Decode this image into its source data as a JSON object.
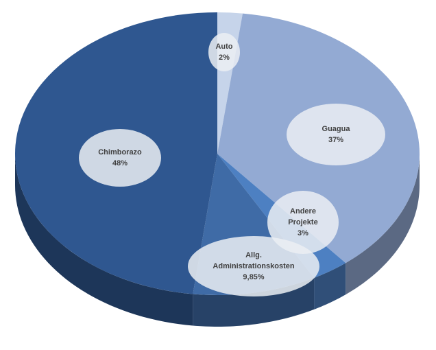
{
  "chart_data": {
    "type": "pie",
    "categories": [
      "Auto",
      "Guagua",
      "Andere Projekte",
      "Allg. Administrationskosten",
      "Chimborazo"
    ],
    "values": [
      2,
      37,
      3,
      9.85,
      48
    ],
    "value_labels": [
      "2%",
      "37%",
      "3%",
      "9,85%",
      "48%"
    ],
    "colors": [
      "#c6d4ea",
      "#93aad3",
      "#4d80c2",
      "#3f6ba6",
      "#2f5790"
    ]
  }
}
